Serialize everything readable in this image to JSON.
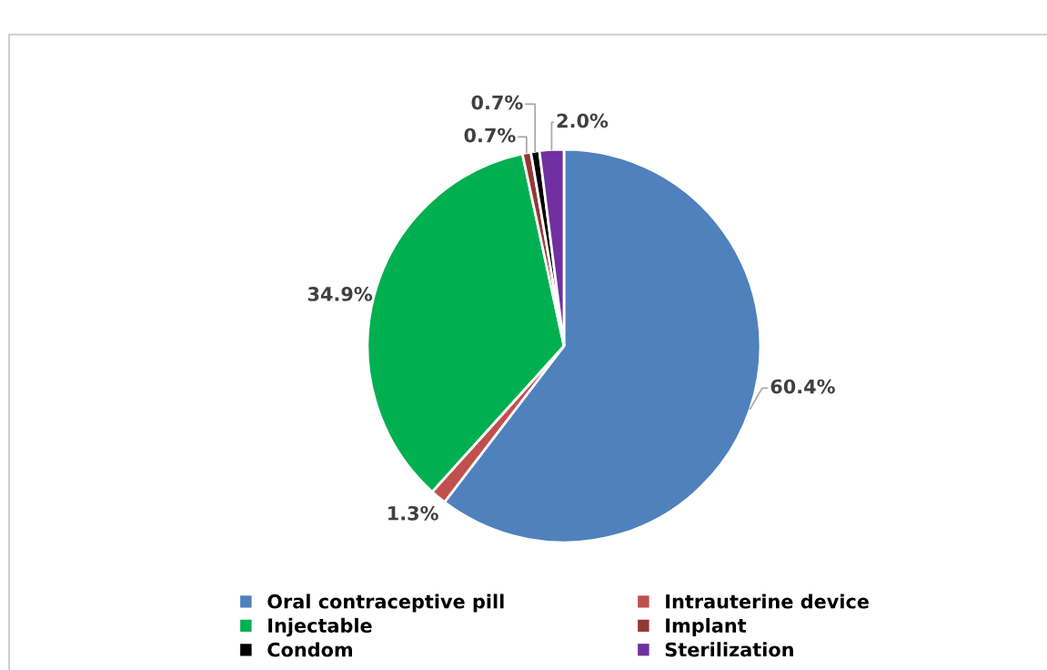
{
  "chart_data": {
    "type": "pie",
    "categories": [
      "Oral contraceptive pill",
      "Intrauterine device",
      "Injectable",
      "Implant",
      "Condom",
      "Sterilization"
    ],
    "values": [
      60.4,
      1.3,
      34.9,
      0.7,
      0.7,
      2.0
    ],
    "colors": [
      "#4f81bd",
      "#c0504d",
      "#00b050",
      "#953735",
      "#000000",
      "#7030a0"
    ],
    "value_labels": [
      "60.4%",
      "1.3%",
      "34.9%",
      "0.7%",
      "0.7%",
      "2.0%"
    ],
    "legend": "bottom"
  }
}
